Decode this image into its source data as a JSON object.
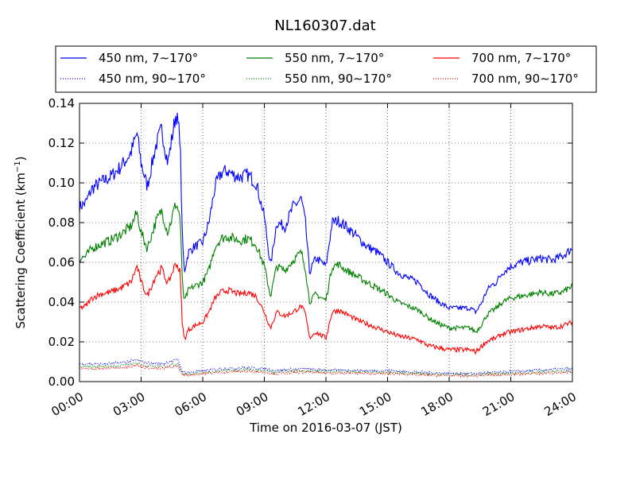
{
  "chart_data": {
    "type": "line",
    "title": "NL160307.dat",
    "xlabel": "Time on 2016-03-07 (JST)",
    "ylabel": {
      "main": "Scattering Coefficient (km",
      "sup": "−1",
      "close": ")"
    },
    "xlim": [
      0,
      24
    ],
    "ylim": [
      0,
      0.14
    ],
    "x_ticks": [
      0,
      3,
      6,
      9,
      12,
      15,
      18,
      21,
      24
    ],
    "x_tick_labels": [
      "00:00",
      "03:00",
      "06:00",
      "09:00",
      "12:00",
      "15:00",
      "18:00",
      "21:00",
      "24:00"
    ],
    "y_ticks": [
      0,
      0.02,
      0.04,
      0.06,
      0.08,
      0.1,
      0.12,
      0.14
    ],
    "y_tick_labels": [
      "0.00",
      "0.02",
      "0.04",
      "0.06",
      "0.08",
      "0.10",
      "0.12",
      "0.14"
    ],
    "grid": true,
    "legend_position": "top (above plot)",
    "series": [
      {
        "name": "450 nm, 7∼170°",
        "color": "#0000ff",
        "style": "solid",
        "x": [
          0,
          0.3,
          0.6,
          1.0,
          1.5,
          2.0,
          2.5,
          2.8,
          3.0,
          3.3,
          3.7,
          4.0,
          4.3,
          4.7,
          4.9,
          5.0,
          5.1,
          5.3,
          5.6,
          6.0,
          6.3,
          6.6,
          6.9,
          7.2,
          7.5,
          7.8,
          8.2,
          8.6,
          9.0,
          9.3,
          9.6,
          10.0,
          10.4,
          10.8,
          11.0,
          11.2,
          11.5,
          11.8,
          12.0,
          12.3,
          12.6,
          13.0,
          13.5,
          14.0,
          14.5,
          15.0,
          15.5,
          16.0,
          16.5,
          17.0,
          17.5,
          18.0,
          18.5,
          19.0,
          19.3,
          19.6,
          19.8,
          20.0,
          20.3,
          20.6,
          21.0,
          21.5,
          22.0,
          22.5,
          23.0,
          23.5,
          24.0
        ],
        "y": [
          0.088,
          0.09,
          0.097,
          0.1,
          0.103,
          0.108,
          0.115,
          0.125,
          0.11,
          0.098,
          0.118,
          0.127,
          0.11,
          0.135,
          0.123,
          0.075,
          0.055,
          0.065,
          0.068,
          0.07,
          0.08,
          0.098,
          0.105,
          0.106,
          0.104,
          0.103,
          0.104,
          0.1,
          0.083,
          0.058,
          0.08,
          0.078,
          0.088,
          0.092,
          0.08,
          0.055,
          0.062,
          0.06,
          0.058,
          0.08,
          0.081,
          0.078,
          0.073,
          0.068,
          0.065,
          0.06,
          0.055,
          0.052,
          0.05,
          0.044,
          0.04,
          0.037,
          0.037,
          0.037,
          0.035,
          0.04,
          0.045,
          0.048,
          0.05,
          0.055,
          0.058,
          0.06,
          0.061,
          0.062,
          0.061,
          0.063,
          0.067
        ]
      },
      {
        "name": "550 nm, 7∼170°",
        "color": "#008000",
        "style": "solid",
        "x": [
          0,
          0.3,
          0.6,
          1.0,
          1.5,
          2.0,
          2.5,
          2.8,
          3.0,
          3.3,
          3.7,
          4.0,
          4.3,
          4.7,
          4.9,
          5.0,
          5.1,
          5.3,
          5.6,
          6.0,
          6.3,
          6.6,
          6.9,
          7.2,
          7.5,
          7.8,
          8.2,
          8.6,
          9.0,
          9.3,
          9.6,
          10.0,
          10.4,
          10.8,
          11.0,
          11.2,
          11.5,
          11.8,
          12.0,
          12.3,
          12.6,
          13.0,
          13.5,
          14.0,
          14.5,
          15.0,
          15.5,
          16.0,
          16.5,
          17.0,
          17.5,
          18.0,
          18.5,
          19.0,
          19.3,
          19.6,
          19.8,
          20.0,
          20.3,
          20.6,
          21.0,
          21.5,
          22.0,
          22.5,
          23.0,
          23.5,
          24.0
        ],
        "y": [
          0.062,
          0.063,
          0.067,
          0.069,
          0.071,
          0.074,
          0.078,
          0.085,
          0.075,
          0.067,
          0.08,
          0.086,
          0.075,
          0.09,
          0.083,
          0.052,
          0.04,
          0.046,
          0.048,
          0.05,
          0.056,
          0.068,
          0.072,
          0.073,
          0.072,
          0.071,
          0.072,
          0.069,
          0.058,
          0.043,
          0.058,
          0.056,
          0.061,
          0.065,
          0.057,
          0.04,
          0.044,
          0.042,
          0.041,
          0.058,
          0.059,
          0.056,
          0.053,
          0.05,
          0.047,
          0.044,
          0.04,
          0.038,
          0.036,
          0.032,
          0.029,
          0.027,
          0.027,
          0.027,
          0.025,
          0.029,
          0.033,
          0.035,
          0.037,
          0.04,
          0.042,
          0.043,
          0.044,
          0.045,
          0.044,
          0.045,
          0.048
        ]
      },
      {
        "name": "700 nm, 7∼170°",
        "color": "#ff0000",
        "style": "solid",
        "x": [
          0,
          0.3,
          0.6,
          1.0,
          1.5,
          2.0,
          2.5,
          2.8,
          3.0,
          3.3,
          3.7,
          4.0,
          4.3,
          4.7,
          4.9,
          5.0,
          5.1,
          5.3,
          5.6,
          6.0,
          6.3,
          6.6,
          6.9,
          7.2,
          7.5,
          7.8,
          8.2,
          8.6,
          9.0,
          9.3,
          9.6,
          10.0,
          10.4,
          10.8,
          11.0,
          11.2,
          11.5,
          11.8,
          12.0,
          12.3,
          12.6,
          13.0,
          13.5,
          14.0,
          14.5,
          15.0,
          15.5,
          16.0,
          16.5,
          17.0,
          17.5,
          18.0,
          18.5,
          19.0,
          19.3,
          19.6,
          19.8,
          20.0,
          20.3,
          20.6,
          21.0,
          21.5,
          22.0,
          22.5,
          23.0,
          23.5,
          24.0
        ],
        "y": [
          0.037,
          0.038,
          0.042,
          0.044,
          0.045,
          0.047,
          0.05,
          0.058,
          0.05,
          0.043,
          0.053,
          0.057,
          0.049,
          0.06,
          0.055,
          0.03,
          0.021,
          0.026,
          0.028,
          0.03,
          0.035,
          0.042,
          0.045,
          0.046,
          0.045,
          0.044,
          0.045,
          0.043,
          0.035,
          0.027,
          0.035,
          0.033,
          0.035,
          0.038,
          0.034,
          0.022,
          0.025,
          0.023,
          0.022,
          0.035,
          0.036,
          0.034,
          0.031,
          0.029,
          0.027,
          0.025,
          0.023,
          0.022,
          0.021,
          0.018,
          0.017,
          0.016,
          0.016,
          0.016,
          0.015,
          0.018,
          0.02,
          0.021,
          0.022,
          0.024,
          0.025,
          0.026,
          0.027,
          0.028,
          0.027,
          0.028,
          0.03
        ]
      },
      {
        "name": "450 nm, 90∼170°",
        "color": "#0000ff",
        "style": "dotted",
        "x": [
          0,
          1,
          2,
          2.8,
          3.2,
          4,
          4.8,
          5.0,
          5.3,
          6,
          7,
          8,
          9,
          9.5,
          10,
          11,
          12,
          13,
          14,
          15,
          16,
          17,
          18,
          19,
          20,
          21,
          22,
          23,
          24
        ],
        "y": [
          0.009,
          0.0088,
          0.0095,
          0.011,
          0.0095,
          0.009,
          0.011,
          0.005,
          0.0045,
          0.0055,
          0.0065,
          0.007,
          0.0065,
          0.0055,
          0.006,
          0.0065,
          0.0058,
          0.0058,
          0.0055,
          0.0055,
          0.005,
          0.0045,
          0.0042,
          0.004,
          0.0045,
          0.005,
          0.0055,
          0.006,
          0.0065
        ]
      },
      {
        "name": "550 nm, 90∼170°",
        "color": "#008000",
        "style": "dotted",
        "x": [
          0,
          1,
          2,
          2.8,
          3.2,
          4,
          4.8,
          5.0,
          5.3,
          6,
          7,
          8,
          9,
          9.5,
          10,
          11,
          12,
          13,
          14,
          15,
          16,
          17,
          18,
          19,
          20,
          21,
          22,
          23,
          24
        ],
        "y": [
          0.0075,
          0.0075,
          0.008,
          0.0095,
          0.008,
          0.0075,
          0.009,
          0.004,
          0.0038,
          0.0045,
          0.0055,
          0.006,
          0.0055,
          0.0045,
          0.005,
          0.0055,
          0.005,
          0.005,
          0.0047,
          0.0047,
          0.0043,
          0.0038,
          0.0035,
          0.0033,
          0.0038,
          0.0042,
          0.0046,
          0.005,
          0.0055
        ]
      },
      {
        "name": "700 nm, 90∼170°",
        "color": "#ff0000",
        "style": "dotted",
        "x": [
          0,
          1,
          2,
          2.8,
          3.2,
          4,
          4.8,
          5.0,
          5.3,
          6,
          7,
          8,
          9,
          9.5,
          10,
          11,
          12,
          13,
          14,
          15,
          16,
          17,
          18,
          19,
          20,
          21,
          22,
          23,
          24
        ],
        "y": [
          0.0065,
          0.0065,
          0.007,
          0.0082,
          0.007,
          0.0065,
          0.0078,
          0.0035,
          0.0032,
          0.004,
          0.0048,
          0.0052,
          0.0048,
          0.0038,
          0.0043,
          0.0048,
          0.0043,
          0.0043,
          0.004,
          0.004,
          0.0037,
          0.0032,
          0.003,
          0.0028,
          0.0032,
          0.0036,
          0.004,
          0.0043,
          0.0048
        ]
      }
    ]
  }
}
